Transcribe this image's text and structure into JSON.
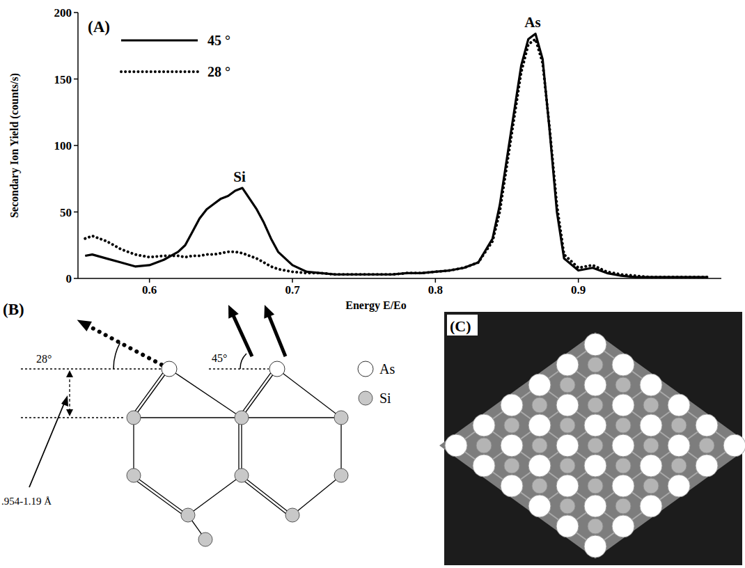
{
  "chart_data": {
    "type": "line",
    "title": "(A)",
    "xlabel": "Energy E/Eo",
    "ylabel": "Secondary Ion Yield (counts/s)",
    "x": [
      0.555,
      0.56,
      0.57,
      0.58,
      0.59,
      0.6,
      0.61,
      0.62,
      0.625,
      0.63,
      0.635,
      0.64,
      0.645,
      0.65,
      0.655,
      0.66,
      0.665,
      0.67,
      0.675,
      0.68,
      0.685,
      0.69,
      0.7,
      0.71,
      0.72,
      0.73,
      0.74,
      0.75,
      0.76,
      0.77,
      0.78,
      0.79,
      0.8,
      0.81,
      0.82,
      0.83,
      0.84,
      0.845,
      0.85,
      0.855,
      0.86,
      0.865,
      0.87,
      0.875,
      0.88,
      0.885,
      0.89,
      0.9,
      0.91,
      0.92,
      0.93,
      0.94,
      0.95,
      0.96,
      0.97,
      0.98,
      0.99
    ],
    "series": [
      {
        "name": "45 °",
        "color": "#000000",
        "line_style": "solid",
        "values": [
          17,
          18,
          15,
          12,
          9,
          10,
          14,
          20,
          25,
          35,
          45,
          52,
          56,
          60,
          62,
          66,
          68,
          60,
          52,
          42,
          30,
          20,
          10,
          5,
          4,
          3,
          3,
          3,
          3,
          3,
          4,
          4,
          5,
          6,
          8,
          12,
          30,
          55,
          90,
          125,
          160,
          180,
          184,
          165,
          110,
          50,
          15,
          6,
          8,
          4,
          2,
          1,
          1,
          1,
          1,
          1,
          1
        ]
      },
      {
        "name": "28 °",
        "color": "#000000",
        "line_style": "dotted",
        "values": [
          30,
          32,
          28,
          22,
          18,
          16,
          17,
          17,
          16,
          17,
          17,
          18,
          18,
          19,
          20,
          20,
          19,
          17,
          15,
          12,
          9,
          7,
          5,
          4,
          4,
          3,
          3,
          3,
          3,
          3,
          4,
          4,
          5,
          6,
          8,
          12,
          28,
          50,
          85,
          120,
          155,
          176,
          180,
          162,
          112,
          55,
          18,
          8,
          10,
          5,
          3,
          2,
          1,
          1,
          1,
          1,
          1
        ]
      }
    ],
    "xlim": [
      0.55,
      1.0
    ],
    "xticks": [
      0.6,
      0.7,
      0.8,
      0.9
    ],
    "ylim": [
      0,
      200
    ],
    "yticks": [
      0,
      50,
      100,
      150,
      200
    ],
    "grid": false,
    "legend": "top-left",
    "annotations": [
      {
        "text": "Si",
        "x": 0.663,
        "y": 73
      },
      {
        "text": "As",
        "x": 0.868,
        "y": 189
      }
    ]
  },
  "diagram": {
    "panel": "(B)",
    "angle_low": "28°",
    "angle_high": "45°",
    "spacing": ".954-1.19 Å",
    "legend": [
      "As",
      "Si"
    ]
  },
  "rendering": {
    "panel": "(C)"
  }
}
